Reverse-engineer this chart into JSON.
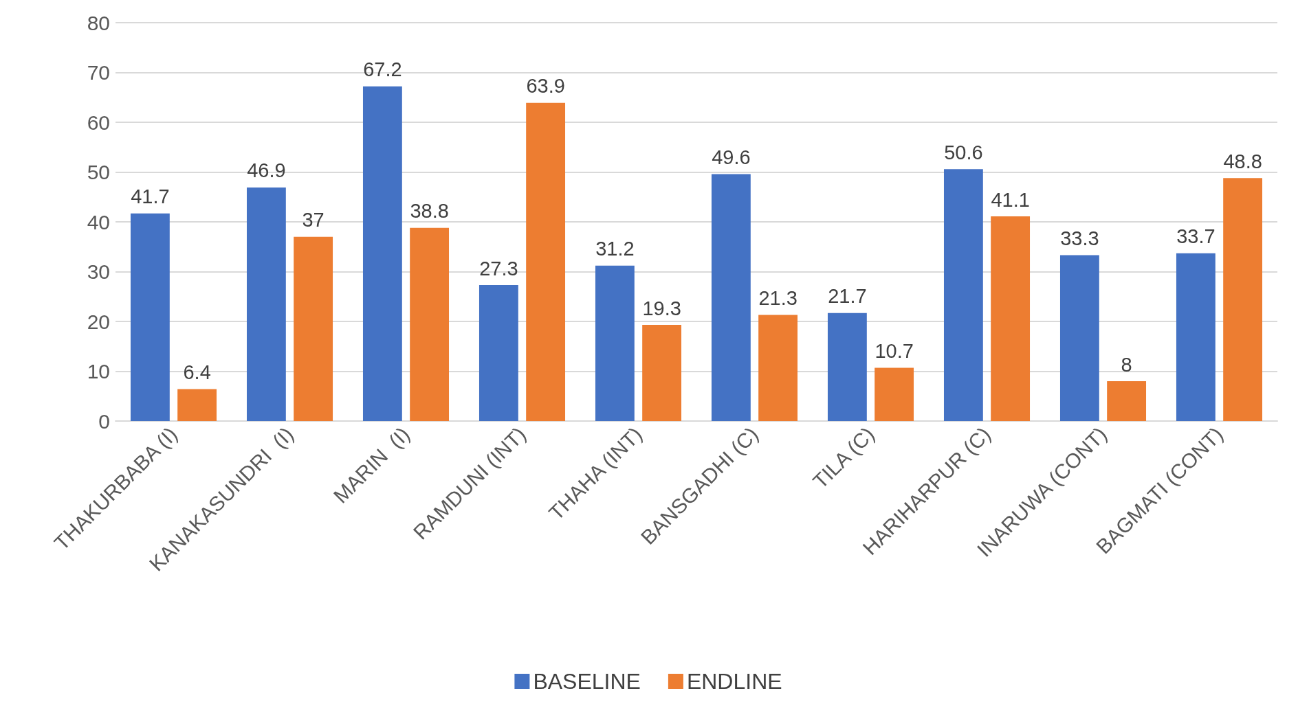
{
  "chart_data": {
    "type": "bar",
    "categories": [
      "THAKURBABA (I)",
      "KANAKASUNDRI  (I)",
      "MARIN  (I)",
      "RAMDUNI (INT)",
      "THAHA (INT)",
      "BANSGADHI (C)",
      "TILA (C)",
      "HARIHARPUR (C)",
      "INARUWA (CONT)",
      "BAGMATI (CONT)"
    ],
    "series": [
      {
        "name": "BASELINE",
        "color": "#4472c4",
        "values": [
          41.7,
          46.9,
          67.2,
          27.3,
          31.2,
          49.6,
          21.7,
          50.6,
          33.3,
          33.7
        ]
      },
      {
        "name": "ENDLINE",
        "color": "#ed7d31",
        "values": [
          6.4,
          37,
          38.8,
          63.9,
          19.3,
          21.3,
          10.7,
          41.1,
          8,
          48.8
        ]
      }
    ],
    "ylim": [
      0,
      80
    ],
    "yticks": [
      0,
      10,
      20,
      30,
      40,
      50,
      60,
      70,
      80
    ],
    "grid": "y",
    "legend": "bottom",
    "data_labels": true
  }
}
